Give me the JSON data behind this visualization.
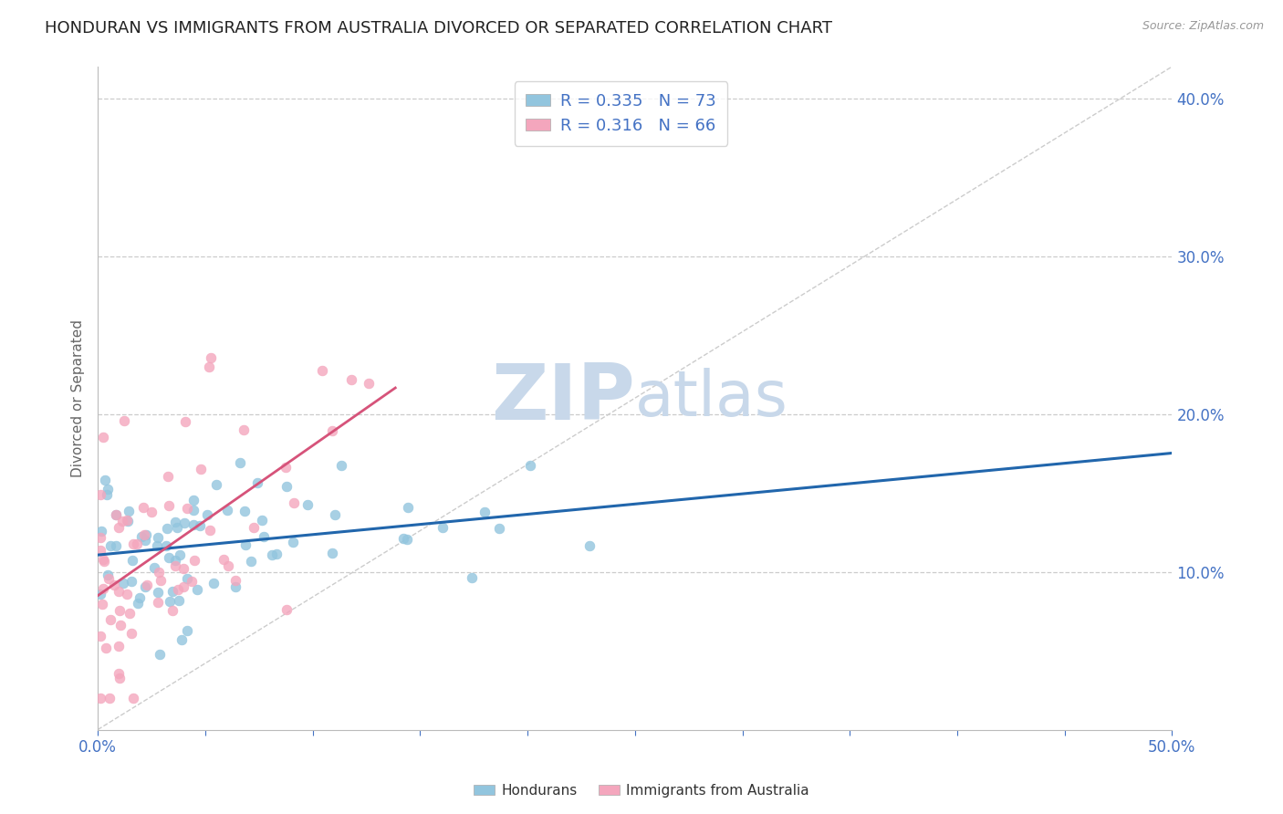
{
  "title": "HONDURAN VS IMMIGRANTS FROM AUSTRALIA DIVORCED OR SEPARATED CORRELATION CHART",
  "source_text": "Source: ZipAtlas.com",
  "ylabel": "Divorced or Separated",
  "xlim": [
    0.0,
    0.5
  ],
  "ylim": [
    0.0,
    0.42
  ],
  "xticks": [
    0.0,
    0.05,
    0.1,
    0.15,
    0.2,
    0.25,
    0.3,
    0.35,
    0.4,
    0.45,
    0.5
  ],
  "ytick_right_vals": [
    0.1,
    0.2,
    0.3,
    0.4
  ],
  "ytick_right_labels": [
    "10.0%",
    "20.0%",
    "30.0%",
    "40.0%"
  ],
  "blue_color": "#92c5de",
  "pink_color": "#f4a6bd",
  "blue_line_color": "#2166ac",
  "pink_line_color": "#d6537a",
  "ref_line_color": "#cccccc",
  "legend_text_color": "#4472c4",
  "watermark_zip": "ZIP",
  "watermark_atlas": "atlas",
  "watermark_color": "#c8d8ea",
  "title_fontsize": 13,
  "axis_label_color": "#666666",
  "tick_color": "#4472c4",
  "background_color": "#ffffff",
  "grid_color": "#cccccc",
  "blue_n": 73,
  "pink_n": 66,
  "blue_seed": 7,
  "pink_seed": 13
}
